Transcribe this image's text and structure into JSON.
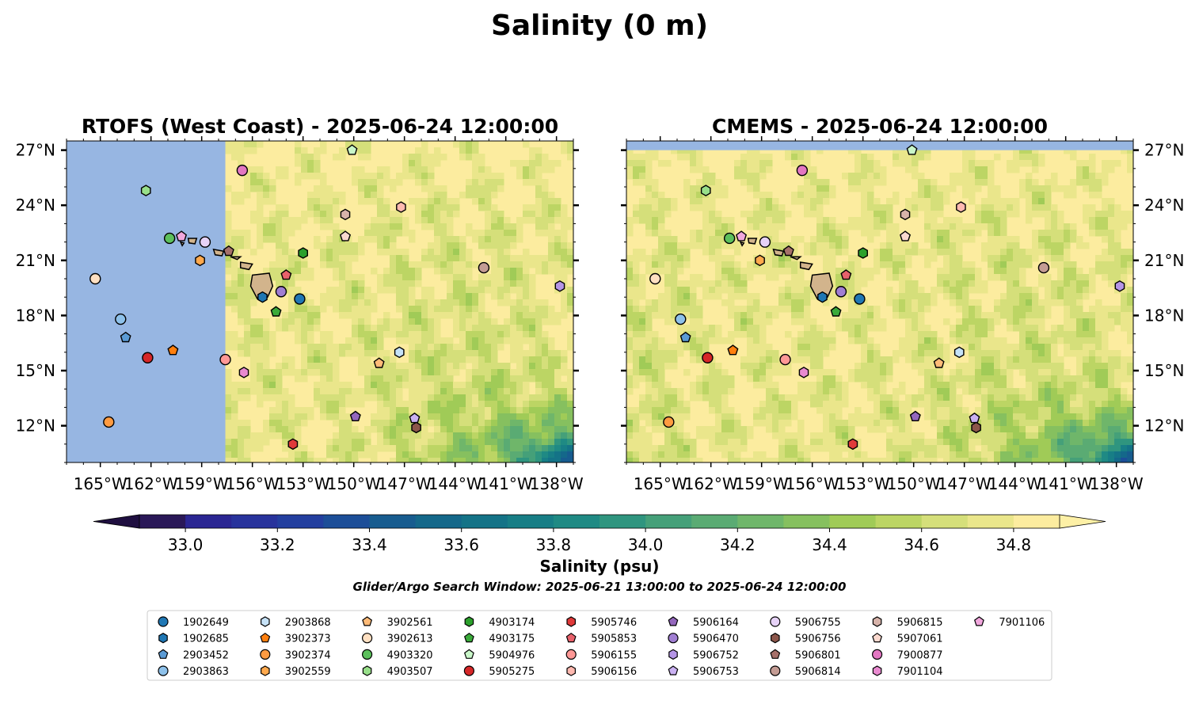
{
  "title": "Salinity (0 m)",
  "colors": {
    "land_mask": "#97b6e2",
    "high_salinity": "#fcec9f",
    "island": "#d2b48c"
  },
  "chart_data": {
    "type": "heatmap",
    "panels": [
      {
        "title": "RTOFS (West Coast) - 2025-06-24 12:00:00",
        "lon_range": [
          -167,
          -137
        ],
        "lat_range": [
          10,
          27.5
        ],
        "masked_lon_max": -157.6,
        "masked_color": "#97b6e2",
        "y_ticks_side": "left"
      },
      {
        "title": "CMEMS - 2025-06-24 12:00:00",
        "lon_range": [
          -167,
          -137
        ],
        "lat_range": [
          10,
          27.5
        ],
        "masked_lat_min": 27.0,
        "masked_color": "#97b6e2",
        "y_ticks_side": "right"
      }
    ],
    "x_ticks": [
      "165°W",
      "162°W",
      "159°W",
      "156°W",
      "153°W",
      "150°W",
      "147°W",
      "144°W",
      "141°W",
      "138°W"
    ],
    "x_tick_values": [
      -165,
      -162,
      -159,
      -156,
      -153,
      -150,
      -147,
      -144,
      -141,
      -138
    ],
    "y_ticks": [
      "27°N",
      "24°N",
      "21°N",
      "18°N",
      "15°N",
      "12°N"
    ],
    "y_tick_values": [
      27,
      24,
      21,
      18,
      15,
      12
    ],
    "colorbar": {
      "label": "Salinity (psu)",
      "min": 32.9,
      "max": 34.9,
      "step": 0.1,
      "extend": "both",
      "ticks": [
        "33.0",
        "33.2",
        "33.4",
        "33.6",
        "33.8",
        "34.0",
        "34.2",
        "34.4",
        "34.6",
        "34.8"
      ],
      "tick_values": [
        33.0,
        33.2,
        33.4,
        33.6,
        33.8,
        34.0,
        34.2,
        34.4,
        34.6,
        34.8
      ],
      "colors": [
        "#2a1858",
        "#2b2693",
        "#28339c",
        "#233f9f",
        "#1c4e98",
        "#175c8f",
        "#14688a",
        "#147387",
        "#177e86",
        "#1f8a84",
        "#2f957f",
        "#45a079",
        "#5aab73",
        "#6fb66a",
        "#86c05f",
        "#a0cb57",
        "#bcd564",
        "#d5df7a",
        "#eae68b",
        "#fcec9f"
      ]
    },
    "search_window": "Glider/Argo Search Window: 2025-06-21 13:00:00 to 2025-06-24 12:00:00",
    "platforms": [
      {
        "id": "1902649",
        "marker": "circle",
        "color": "#1f77b4",
        "lon": -153.2,
        "lat": 18.9
      },
      {
        "id": "1902685",
        "marker": "hexagon",
        "color": "#1f77b4",
        "lon": -155.4,
        "lat": 19.0
      },
      {
        "id": "2903452",
        "marker": "pentagon",
        "color": "#5b9bd5",
        "lon": -163.5,
        "lat": 16.8
      },
      {
        "id": "2903863",
        "marker": "circle",
        "color": "#8ec1ea",
        "lon": -163.8,
        "lat": 17.8
      },
      {
        "id": "2903868",
        "marker": "hexagon",
        "color": "#c6e2f7",
        "lon": -147.3,
        "lat": 16.0
      },
      {
        "id": "3902373",
        "marker": "pentagon",
        "color": "#ff7f0e",
        "lon": -160.7,
        "lat": 16.1
      },
      {
        "id": "3902374",
        "marker": "circle",
        "color": "#ff9b41",
        "lon": -164.5,
        "lat": 12.2
      },
      {
        "id": "3902559",
        "marker": "hexagon",
        "color": "#ffa94d",
        "lon": -159.1,
        "lat": 21.0
      },
      {
        "id": "3902561",
        "marker": "pentagon",
        "color": "#ffbb78",
        "lon": -148.5,
        "lat": 15.4
      },
      {
        "id": "3902613",
        "marker": "circle",
        "color": "#ffe0c2",
        "lon": -165.3,
        "lat": 20.0
      },
      {
        "id": "4903320",
        "marker": "circle",
        "color": "#5cc05c",
        "lon": -160.9,
        "lat": 22.2
      },
      {
        "id": "4903507",
        "marker": "hexagon",
        "color": "#98df8a",
        "lon": -162.3,
        "lat": 24.8
      },
      {
        "id": "4903174",
        "marker": "hexagon",
        "color": "#2ca02c",
        "lon": -153.0,
        "lat": 21.4
      },
      {
        "id": "4903175",
        "marker": "pentagon",
        "color": "#3aaa3a",
        "lon": -154.6,
        "lat": 18.2
      },
      {
        "id": "5904976",
        "marker": "pentagon",
        "color": "#c9f7c9",
        "lon": -150.1,
        "lat": 27.0
      },
      {
        "id": "5905275",
        "marker": "circle",
        "color": "#d62728",
        "lon": -162.2,
        "lat": 15.7
      },
      {
        "id": "5905746",
        "marker": "hexagon",
        "color": "#e03a3a",
        "lon": -153.6,
        "lat": 11.0
      },
      {
        "id": "5905853",
        "marker": "pentagon",
        "color": "#e8616b",
        "lon": -154.0,
        "lat": 20.2
      },
      {
        "id": "5906155",
        "marker": "circle",
        "color": "#ff9896",
        "lon": -157.6,
        "lat": 15.6
      },
      {
        "id": "5906156",
        "marker": "hexagon",
        "color": "#ffb9b0",
        "lon": -147.2,
        "lat": 23.9
      },
      {
        "id": "5906164",
        "marker": "pentagon",
        "color": "#9467bd",
        "lon": -149.9,
        "lat": 12.5
      },
      {
        "id": "5906470",
        "marker": "circle",
        "color": "#a07ed2",
        "lon": -154.3,
        "lat": 19.3
      },
      {
        "id": "5906752",
        "marker": "hexagon",
        "color": "#b595e6",
        "lon": -137.8,
        "lat": 19.6
      },
      {
        "id": "5906753",
        "marker": "pentagon",
        "color": "#cab1f2",
        "lon": -146.4,
        "lat": 12.4
      },
      {
        "id": "5906755",
        "marker": "circle",
        "color": "#e6d2f7",
        "lon": -158.8,
        "lat": 22.0
      },
      {
        "id": "5906756",
        "marker": "hexagon",
        "color": "#8c564b",
        "lon": -146.3,
        "lat": 11.9
      },
      {
        "id": "5906801",
        "marker": "pentagon",
        "color": "#a6706a",
        "lon": -157.4,
        "lat": 21.5
      },
      {
        "id": "5906814",
        "marker": "circle",
        "color": "#c49c94",
        "lon": -142.3,
        "lat": 20.6
      },
      {
        "id": "5906815",
        "marker": "hexagon",
        "color": "#d7b3aa",
        "lon": -150.5,
        "lat": 23.5
      },
      {
        "id": "5907061",
        "marker": "pentagon",
        "color": "#fbd9cf",
        "lon": -150.5,
        "lat": 22.3
      },
      {
        "id": "7900877",
        "marker": "circle",
        "color": "#e377c2",
        "lon": -156.6,
        "lat": 25.9
      },
      {
        "id": "7901104",
        "marker": "hexagon",
        "color": "#e98ad0",
        "lon": -156.5,
        "lat": 14.9
      },
      {
        "id": "7901106",
        "marker": "pentagon",
        "color": "#f1a7dd",
        "lon": -160.2,
        "lat": 22.3
      }
    ]
  }
}
